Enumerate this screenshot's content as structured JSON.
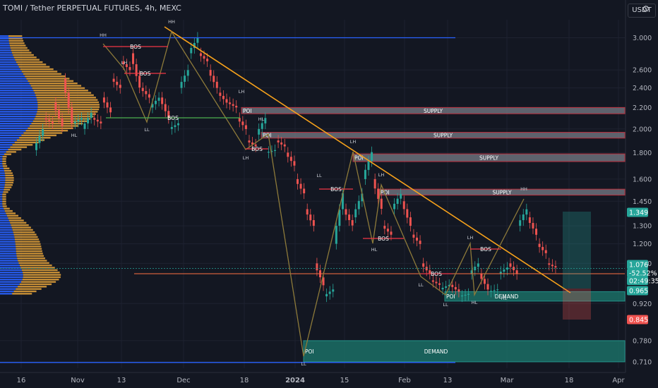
{
  "header": {
    "title": "TOMI / Tether PERPETUAL FUTURES, 4h, MEXC",
    "currency_button": "USDT",
    "settings_icon": "gear-icon"
  },
  "colors": {
    "background": "#131722",
    "grid": "#1e2230",
    "candle_up": "#26a69a",
    "candle_down": "#ef5350",
    "trendline": "#f7a21b",
    "bos": "#f23645",
    "choch": "#4caf50",
    "volume_profile_up": "#e8a53a",
    "volume_profile_down": "#2962ff",
    "supply_zone": "#787b86",
    "demand_zone": "#1b6e66"
  },
  "chart_data": {
    "type": "candlestick",
    "symbol": "TOMI / Tether PERPETUAL FUTURES",
    "interval": "4h",
    "exchange": "MEXC",
    "y_axis": {
      "scale": "log",
      "ticks": [
        "3.000",
        "2.600",
        "2.400",
        "2.200",
        "2.000",
        "1.800",
        "1.600",
        "1.450",
        "1.300",
        "1.200",
        "1.100",
        "0.920",
        "0.780",
        "0.710"
      ],
      "range": [
        0.69,
        3.3
      ]
    },
    "x_axis": {
      "ticks": [
        "16",
        "Nov",
        "13",
        "Dec",
        "18",
        "2024",
        "15",
        "Feb",
        "13",
        "Mar",
        "18",
        "Apr"
      ]
    },
    "price_labels": [
      {
        "value": "1.349",
        "kind": "target"
      },
      {
        "value": "1.076",
        "kind": "current"
      },
      {
        "value": "-52.52%",
        "kind": "change"
      },
      {
        "value": "02:49:35",
        "kind": "countdown"
      },
      {
        "value": "0.965",
        "kind": "level"
      },
      {
        "value": "0.845",
        "kind": "stop"
      }
    ],
    "price_path": [
      [
        1.82,
        2.0
      ],
      [
        2.1,
        2.05
      ],
      [
        2.25,
        2.02
      ],
      [
        2.5,
        2.05
      ],
      [
        2.05,
        2.1
      ],
      [
        2.0,
        2.15
      ],
      [
        2.1,
        2.05
      ],
      [
        2.3,
        2.15
      ],
      [
        2.5,
        2.4
      ],
      [
        2.7,
        2.6
      ],
      [
        2.8,
        2.4
      ],
      [
        2.4,
        2.3
      ],
      [
        2.2,
        2.3
      ],
      [
        2.3,
        2.1
      ],
      [
        2.0,
        2.05
      ],
      [
        2.4,
        2.6
      ],
      [
        2.8,
        3.0
      ],
      [
        2.8,
        2.7
      ],
      [
        2.6,
        2.4
      ],
      [
        2.35,
        2.25
      ],
      [
        2.25,
        2.2
      ],
      [
        2.1,
        2.0
      ],
      [
        1.9,
        1.85
      ],
      [
        1.95,
        2.1
      ],
      [
        1.8,
        1.82
      ],
      [
        1.9,
        1.85
      ],
      [
        1.8,
        1.7
      ],
      [
        1.6,
        1.5
      ],
      [
        1.4,
        1.3
      ],
      [
        1.1,
        1.0
      ],
      [
        0.95,
        0.98
      ],
      [
        1.2,
        1.5
      ],
      [
        1.4,
        1.3
      ],
      [
        1.35,
        1.5
      ],
      [
        1.6,
        1.8
      ],
      [
        1.6,
        1.4
      ],
      [
        1.3,
        1.25
      ],
      [
        1.4,
        1.5
      ],
      [
        1.45,
        1.3
      ],
      [
        1.25,
        1.2
      ],
      [
        1.1,
        1.05
      ],
      [
        1.02,
        1.0
      ],
      [
        0.98,
        1.0
      ],
      [
        1.0,
        0.97
      ],
      [
        0.95,
        0.96
      ],
      [
        1.05,
        1.1
      ],
      [
        1.05,
        0.98
      ],
      [
        0.97,
        0.98
      ],
      [
        1.05,
        1.08
      ],
      [
        1.1,
        1.05
      ],
      [
        1.3,
        1.4
      ],
      [
        1.35,
        1.25
      ],
      [
        1.2,
        1.15
      ],
      [
        1.1,
        1.08
      ]
    ],
    "labels": {
      "structure": [
        "HH",
        "LH",
        "HH",
        "LH",
        "HL",
        "LL",
        "HL",
        "LH",
        "LL",
        "LH",
        "LH",
        "LH",
        "HL",
        "LL",
        "LL",
        "HL",
        "HL",
        "HH",
        "LL"
      ],
      "bos": [
        "BOS",
        "BOS",
        "BOS",
        "BOS",
        "BOS",
        "BOS",
        "BOS",
        "BOS",
        "BOS",
        "BOS"
      ],
      "poi": [
        "POI",
        "POI",
        "POI",
        "POI",
        "POI",
        "POI"
      ],
      "zones": [
        {
          "type": "SUPPLY",
          "from": 2.14,
          "to": 2.2
        },
        {
          "type": "SUPPLY",
          "from": 1.92,
          "to": 1.97
        },
        {
          "type": "SUPPLY",
          "from": 1.73,
          "to": 1.79
        },
        {
          "type": "SUPPLY",
          "from": 1.49,
          "to": 1.53
        },
        {
          "type": "DEMAND",
          "from": 0.93,
          "to": 0.97
        },
        {
          "type": "DEMAND",
          "from": 0.71,
          "to": 0.78
        }
      ]
    },
    "grid": true,
    "volume_profile": true
  }
}
